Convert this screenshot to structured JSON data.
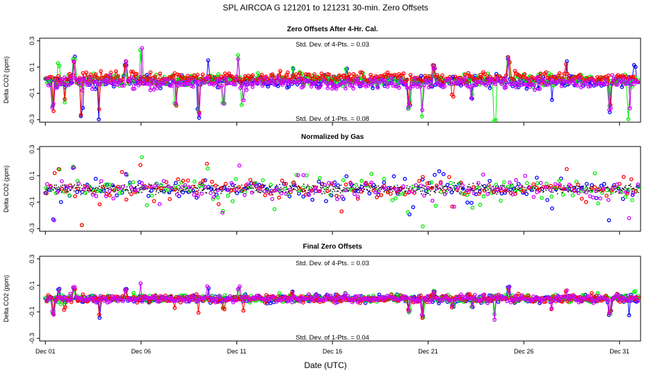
{
  "chart_data": {
    "type": "scatter",
    "title": "SPL   AIRCOA G   121201 to 121231   30-min. Zero Offsets",
    "xlabel": "Date (UTC)",
    "x_unit": "day of December 2012",
    "xlim": [
      0.7,
      32.1
    ],
    "x_ticks": [
      {
        "value": 1,
        "label": "Dec 01"
      },
      {
        "value": 6,
        "label": "Dec 06"
      },
      {
        "value": 11,
        "label": "Dec 11"
      },
      {
        "value": 16,
        "label": "Dec 16"
      },
      {
        "value": 21,
        "label": "Dec 21"
      },
      {
        "value": 26,
        "label": "Dec 26"
      },
      {
        "value": 31,
        "label": "Dec 31"
      }
    ],
    "series_colors": {
      "gas1": "#0000ff",
      "gas2": "#00ee00",
      "gas3": "#ff0000",
      "gas4": "#cc00ff",
      "mean": "#000000"
    },
    "x_start": 1.0,
    "x_end": 32.0,
    "panels": [
      {
        "title": "Zero Offsets After 4-Hr. Cal.",
        "ylabel": "Delta CO2 (ppm)",
        "ylim": [
          -0.32,
          0.32
        ],
        "y_ticks": [
          -0.3,
          -0.1,
          0.1,
          0.3
        ],
        "y_tick_labels": [
          "-0.3",
          "-0.1",
          "0.1",
          "0.3"
        ],
        "stat_top": "Std. Dev. of 4-Pts. = 0.03",
        "stat_bottom": "Std. Dev. of 1-Pts. = 0.08",
        "spread": 0.045,
        "mode": "raw"
      },
      {
        "title": "Normalized by Gas",
        "ylabel": "Delta CO2 (ppm)",
        "ylim": [
          -0.32,
          0.32
        ],
        "y_ticks": [
          -0.3,
          -0.1,
          0.1,
          0.3
        ],
        "y_tick_labels": [
          "-0.3",
          "-0.1",
          "0.1",
          "0.3"
        ],
        "spread": 0.07,
        "mode": "normalized"
      },
      {
        "title": "Final Zero Offsets",
        "ylabel": "Delta CO2 (ppm)",
        "ylim": [
          -0.32,
          0.32
        ],
        "y_ticks": [
          -0.3,
          -0.1,
          0.1,
          0.3
        ],
        "y_tick_labels": [
          "-0.3",
          "-0.1",
          "0.1",
          "0.3"
        ],
        "stat_top": "Std. Dev. of 4-Pts. = 0.03",
        "stat_bottom": "Std. Dev. of 1-Pts. = 0.04",
        "spread": 0.03,
        "mode": "final"
      }
    ],
    "spikes": [
      {
        "x": 1.4,
        "dy": -0.25
      },
      {
        "x": 1.7,
        "dy": 0.15
      },
      {
        "x": 2.0,
        "dy": -0.18
      },
      {
        "x": 2.5,
        "dy": 0.18
      },
      {
        "x": 2.9,
        "dy": -0.3
      },
      {
        "x": 3.8,
        "dy": -0.3
      },
      {
        "x": 5.2,
        "dy": 0.15
      },
      {
        "x": 6.0,
        "dy": 0.25
      },
      {
        "x": 7.8,
        "dy": -0.2
      },
      {
        "x": 9.0,
        "dy": -0.3
      },
      {
        "x": 9.5,
        "dy": 0.2
      },
      {
        "x": 10.3,
        "dy": -0.18
      },
      {
        "x": 11.1,
        "dy": 0.2
      },
      {
        "x": 11.3,
        "dy": -0.2
      },
      {
        "x": 13.9,
        "dy": 0.12
      },
      {
        "x": 16.7,
        "dy": 0.1
      },
      {
        "x": 20.0,
        "dy": -0.22
      },
      {
        "x": 20.7,
        "dy": -0.3
      },
      {
        "x": 21.3,
        "dy": 0.12
      },
      {
        "x": 22.3,
        "dy": -0.15
      },
      {
        "x": 23.3,
        "dy": -0.15
      },
      {
        "x": 24.5,
        "dy": -0.32
      },
      {
        "x": 25.2,
        "dy": 0.18
      },
      {
        "x": 27.5,
        "dy": -0.18
      },
      {
        "x": 28.2,
        "dy": 0.15
      },
      {
        "x": 30.5,
        "dy": -0.25
      },
      {
        "x": 31.5,
        "dy": -0.3
      },
      {
        "x": 31.8,
        "dy": 0.12
      }
    ]
  }
}
